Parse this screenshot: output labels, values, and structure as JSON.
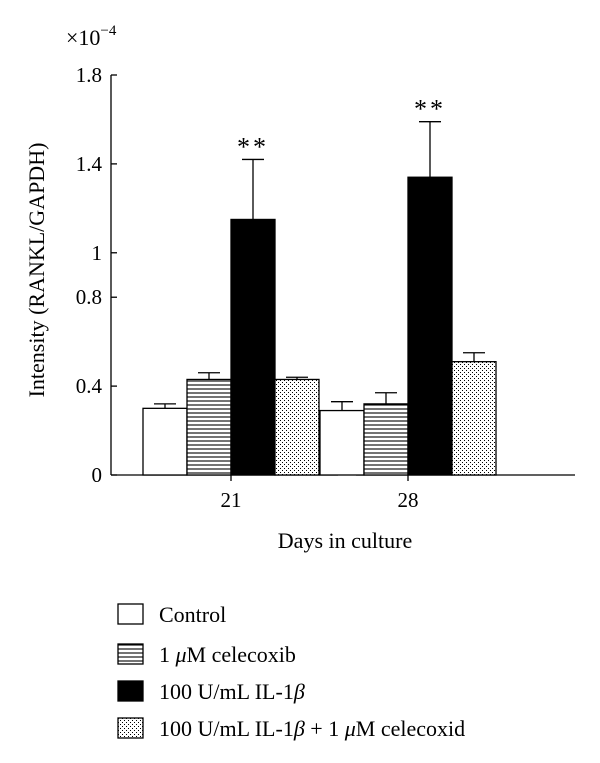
{
  "chart_data": {
    "type": "bar",
    "multiplier_label": "×10",
    "multiplier_exponent": "−4",
    "ylabel": "Intensity (RANKL/GAPDH)",
    "xlabel": "Days in culture",
    "categories": [
      "21",
      "28"
    ],
    "ylim": [
      0,
      1.8
    ],
    "yticks": [
      {
        "value": 0,
        "label": "0"
      },
      {
        "value": 0.4,
        "label": "0.4"
      },
      {
        "value": 0.8,
        "label": "0.8"
      },
      {
        "value": 1.0,
        "label": "1"
      },
      {
        "value": 1.4,
        "label": "1.4"
      },
      {
        "value": 1.8,
        "label": "1.8"
      }
    ],
    "series": [
      {
        "name": "Control",
        "fill": "white",
        "values": [
          0.3,
          0.29
        ],
        "errors": [
          0.02,
          0.04
        ]
      },
      {
        "name": "1 μM celecoxib",
        "fill": "horizontal-lines",
        "values": [
          0.43,
          0.32
        ],
        "errors": [
          0.03,
          0.05
        ]
      },
      {
        "name": "100 U/mL IL-1β",
        "fill": "black",
        "values": [
          1.15,
          1.34
        ],
        "errors": [
          0.27,
          0.25
        ]
      },
      {
        "name": "100 U/mL IL-1β + 1 μM celecoxid",
        "fill": "dots",
        "values": [
          0.43,
          0.51
        ],
        "errors": [
          0.01,
          0.04
        ]
      }
    ],
    "annotations": [
      "**",
      "**"
    ],
    "legend": {
      "placement": "bottom",
      "entries": [
        {
          "pre": "Control",
          "greek": "",
          "post": ""
        },
        {
          "pre": "1 ",
          "greek": "μ",
          "post": "M celecoxib"
        },
        {
          "pre": "100 U/mL IL-1",
          "greek": "β",
          "post": ""
        },
        {
          "pre": "100 U/mL IL-1",
          "greek": "β",
          "post": " + 1 ",
          "greek2": "μ",
          "post2": "M celecoxid"
        }
      ]
    },
    "colors": {
      "axis": "#000000",
      "bar_stroke": "#000000",
      "solid": "#000000",
      "background": "#ffffff"
    }
  }
}
